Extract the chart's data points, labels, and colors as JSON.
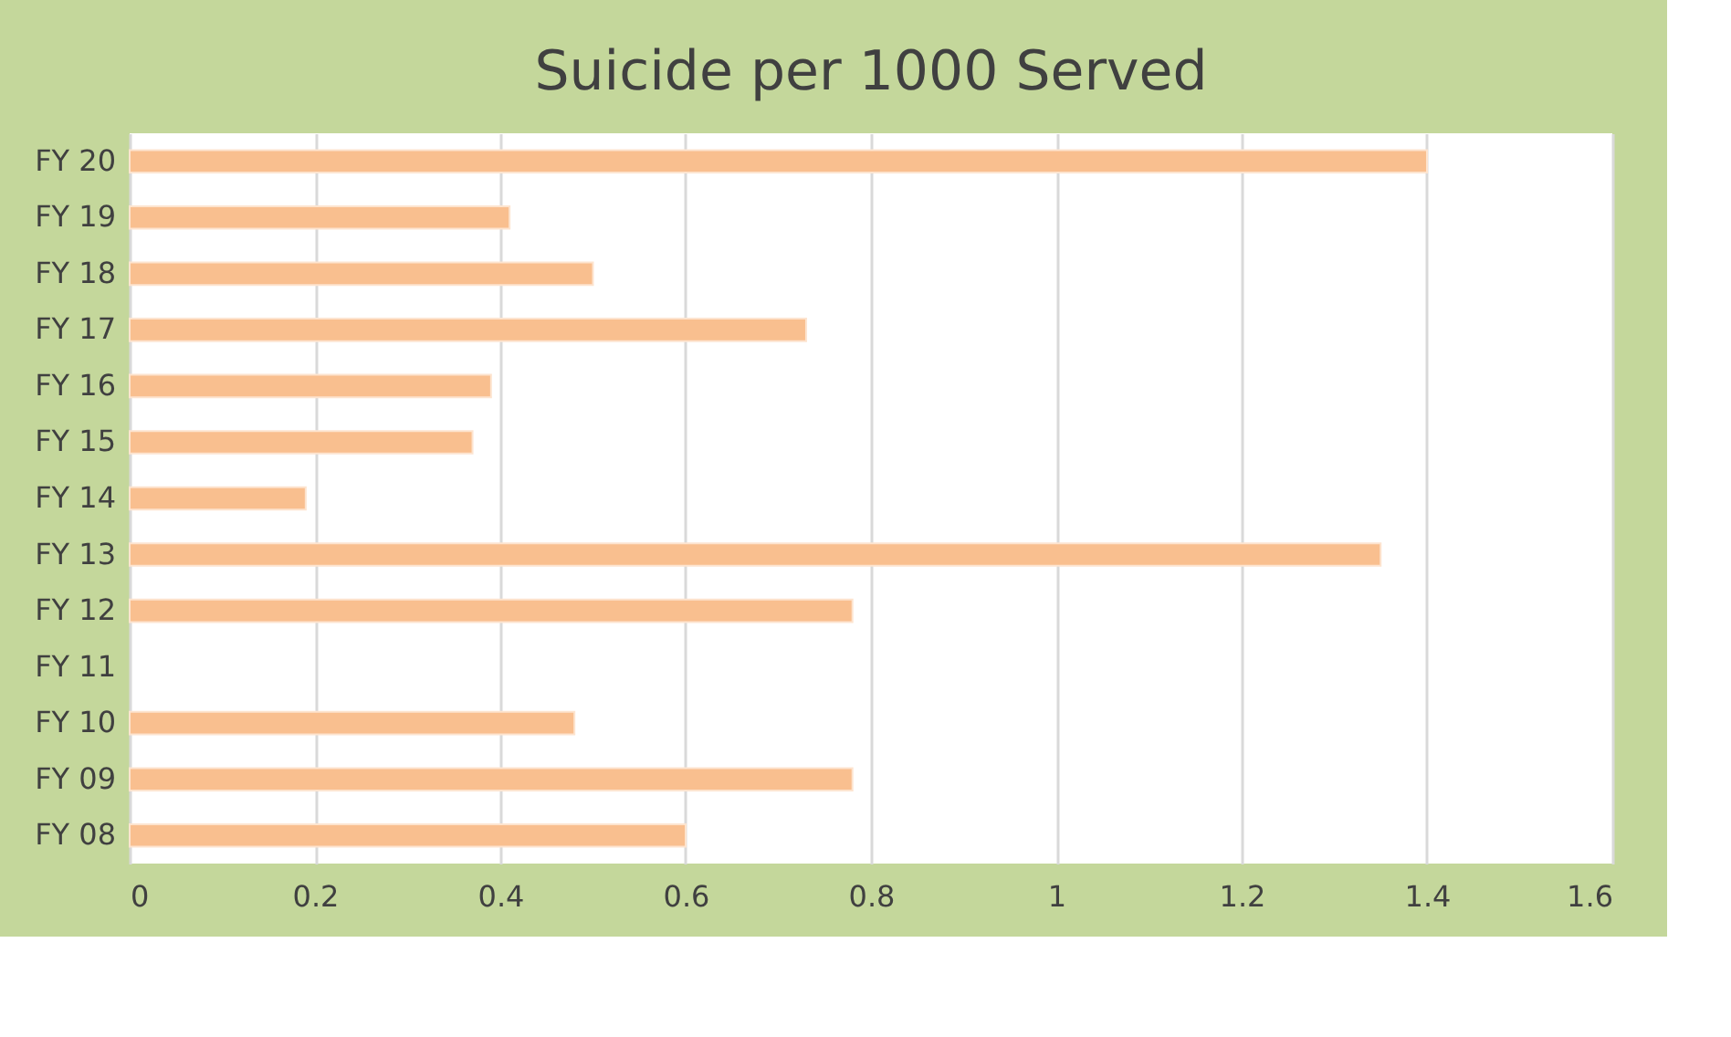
{
  "chart_data": {
    "type": "bar",
    "orientation": "horizontal",
    "title": "Suicide per 1000 Served",
    "categories": [
      "FY 20",
      "FY 19",
      "FY 18",
      "FY 17",
      "FY 16",
      "FY 15",
      "FY 14",
      "FY 13",
      "FY 12",
      "FY 11",
      "FY 10",
      "FY 09",
      "FY 08"
    ],
    "values": [
      1.4,
      0.41,
      0.5,
      0.73,
      0.39,
      0.37,
      0.19,
      1.35,
      0.78,
      null,
      0.48,
      0.78,
      0.6
    ],
    "color": "#f9bf8f",
    "xlim": [
      0,
      1.6
    ],
    "xticks": [
      0,
      0.2,
      0.4,
      0.6,
      0.8,
      1,
      1.2,
      1.4,
      1.6
    ],
    "grid": "x"
  }
}
